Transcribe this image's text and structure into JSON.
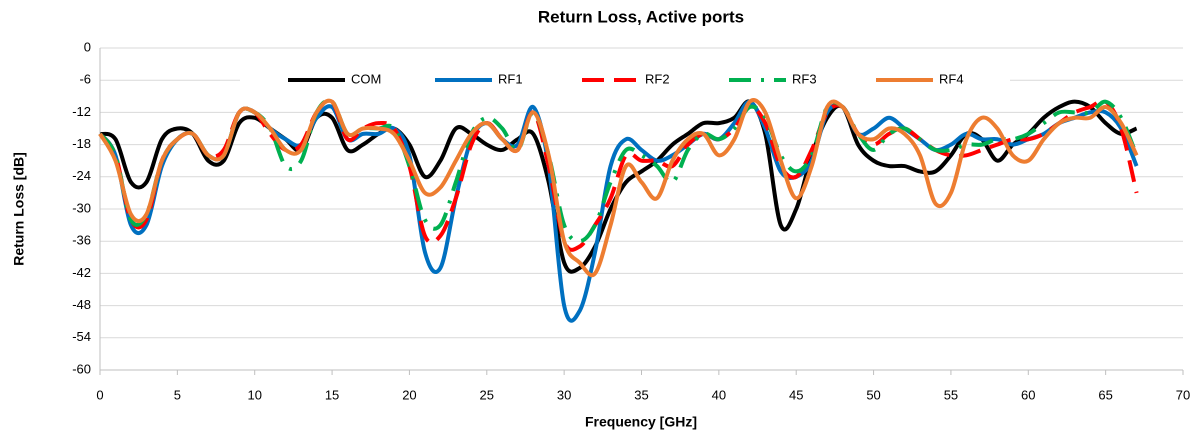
{
  "chart_data": {
    "type": "line",
    "title": "Return Loss, Active ports",
    "x_label": "Frequency [GHz]",
    "y_label": "Return Loss [dB]",
    "xlim": [
      0,
      70
    ],
    "xticks": [
      0,
      5,
      10,
      15,
      20,
      25,
      30,
      35,
      40,
      45,
      50,
      55,
      60,
      65,
      70
    ],
    "ylim": [
      -60,
      0
    ],
    "yticks": [
      -60,
      -54,
      -48,
      -42,
      -36,
      -30,
      -24,
      -18,
      -12,
      -6,
      0
    ],
    "grid": true,
    "legend": "top",
    "x": [
      0,
      1,
      2,
      3,
      4,
      5,
      6,
      7,
      8,
      9,
      10,
      11,
      12,
      13,
      14,
      15,
      16,
      17,
      18,
      19,
      20,
      21,
      22,
      23,
      24,
      25,
      26,
      27,
      28,
      29,
      30,
      31,
      32,
      33,
      34,
      35,
      36,
      37,
      38,
      39,
      40,
      41,
      42,
      43,
      44,
      45,
      46,
      47,
      48,
      49,
      50,
      51,
      52,
      53,
      54,
      55,
      56,
      57,
      58,
      59,
      60,
      61,
      62,
      63,
      64,
      65,
      66,
      67
    ],
    "series": [
      {
        "name": "COM",
        "color": "#000000",
        "style": "solid",
        "values": [
          -16,
          -17,
          -25,
          -25,
          -17,
          -15,
          -16,
          -21,
          -21,
          -14,
          -13,
          -15,
          -17,
          -19,
          -13,
          -13,
          -19,
          -18,
          -16,
          -15,
          -18,
          -24,
          -21,
          -15,
          -16,
          -18,
          -19,
          -17,
          -16,
          -25,
          -40,
          -41,
          -37,
          -30,
          -25,
          -23,
          -21,
          -18,
          -16,
          -14,
          -14,
          -13,
          -10,
          -16,
          -33,
          -30,
          -20,
          -13,
          -11,
          -18,
          -21,
          -22,
          -22,
          -23,
          -23,
          -20,
          -16,
          -17,
          -21,
          -18,
          -16,
          -13,
          -11,
          -10,
          -11,
          -14,
          -16,
          -15
        ]
      },
      {
        "name": "RF1",
        "color": "#0070c0",
        "style": "solid",
        "values": [
          -16,
          -20,
          -33,
          -33,
          -22,
          -17,
          -16,
          -20,
          -20,
          -12,
          -12,
          -15,
          -17,
          -18,
          -13,
          -11,
          -17,
          -16,
          -16,
          -15,
          -20,
          -38,
          -41,
          -28,
          -17,
          -14,
          -17,
          -18,
          -11,
          -22,
          -48,
          -49,
          -38,
          -22,
          -17,
          -19,
          -21,
          -20,
          -18,
          -16,
          -17,
          -14,
          -10,
          -15,
          -23,
          -24,
          -21,
          -12,
          -11,
          -16,
          -15,
          -13,
          -15,
          -17,
          -19,
          -18,
          -16,
          -17,
          -17,
          -18,
          -17,
          -16,
          -14,
          -13,
          -12,
          -12,
          -15,
          -22
        ]
      },
      {
        "name": "RF2",
        "color": "#ff0000",
        "style": "dashed",
        "values": [
          -16,
          -20,
          -32,
          -32,
          -21,
          -17,
          -16,
          -20,
          -19,
          -12,
          -12,
          -16,
          -19,
          -18,
          -12,
          -10,
          -17,
          -15,
          -14,
          -15,
          -22,
          -35,
          -35,
          -28,
          -18,
          -14,
          -17,
          -19,
          -12,
          -22,
          -36,
          -37,
          -33,
          -28,
          -20,
          -21,
          -21,
          -22,
          -18,
          -16,
          -17,
          -15,
          -11,
          -14,
          -22,
          -24,
          -19,
          -12,
          -11,
          -16,
          -18,
          -16,
          -15,
          -17,
          -19,
          -20,
          -20,
          -19,
          -18,
          -17,
          -17,
          -16,
          -14,
          -12,
          -11,
          -10,
          -15,
          -27
        ]
      },
      {
        "name": "RF3",
        "color": "#00b050",
        "style": "dash-dot",
        "values": [
          -16,
          -20,
          -32,
          -31,
          -21,
          -17,
          -16,
          -20,
          -20,
          -12,
          -12,
          -15,
          -22,
          -21,
          -12,
          -10,
          -16,
          -15,
          -15,
          -15,
          -22,
          -32,
          -33,
          -25,
          -16,
          -13,
          -15,
          -19,
          -12,
          -20,
          -33,
          -36,
          -33,
          -25,
          -19,
          -20,
          -22,
          -25,
          -19,
          -16,
          -17,
          -15,
          -11,
          -13,
          -20,
          -23,
          -20,
          -11,
          -11,
          -16,
          -19,
          -16,
          -15,
          -17,
          -19,
          -19,
          -18,
          -18,
          -17,
          -17,
          -16,
          -14,
          -12,
          -12,
          -12,
          -10,
          -13,
          -20
        ]
      },
      {
        "name": "RF4",
        "color": "#ed7d31",
        "style": "solid",
        "values": [
          -16,
          -21,
          -31,
          -31,
          -21,
          -17,
          -16,
          -20,
          -20,
          -12,
          -12,
          -15,
          -19,
          -19,
          -12,
          -10,
          -16,
          -15,
          -15,
          -16,
          -21,
          -27,
          -26,
          -21,
          -16,
          -14,
          -17,
          -19,
          -12,
          -20,
          -36,
          -40,
          -42,
          -33,
          -22,
          -25,
          -28,
          -21,
          -17,
          -16,
          -20,
          -17,
          -10,
          -12,
          -21,
          -28,
          -22,
          -11,
          -11,
          -16,
          -17,
          -15,
          -16,
          -20,
          -29,
          -27,
          -17,
          -13,
          -15,
          -20,
          -21,
          -17,
          -14,
          -13,
          -13,
          -11,
          -14,
          -20
        ]
      }
    ]
  }
}
